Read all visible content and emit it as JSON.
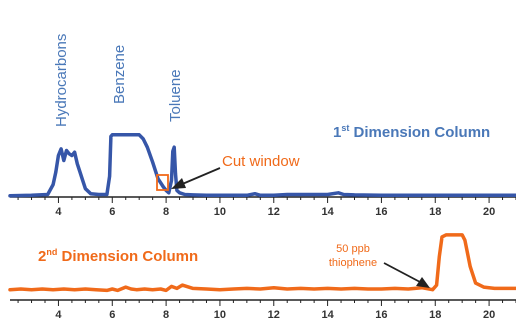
{
  "colors": {
    "blue": "#3656a8",
    "label_blue": "#4a78b8",
    "orange": "#f06a1a",
    "axis": "#222222"
  },
  "chart_data": [
    {
      "type": "line",
      "title_main": "1",
      "title_sup": "st",
      "title_rest": " Dimension Column",
      "xlabel": "",
      "ylabel": "",
      "xlim": [
        2.2,
        21
      ],
      "ylim": [
        0,
        100
      ],
      "x_ticks": [
        4,
        6,
        8,
        10,
        12,
        14,
        16,
        18,
        20
      ],
      "x_tick_labels": [
        "4",
        "6",
        "8",
        "10",
        "12",
        "14",
        "16",
        "18",
        "20"
      ],
      "grid": false,
      "series": [
        {
          "color": "#3656a8",
          "x": [
            2.2,
            3.0,
            3.6,
            3.8,
            3.9,
            4.0,
            4.1,
            4.2,
            4.3,
            4.4,
            4.5,
            4.6,
            4.7,
            4.8,
            4.9,
            5.0,
            5.2,
            5.5,
            5.8,
            5.9,
            5.95,
            6.0,
            6.1,
            6.3,
            6.5,
            6.7,
            7.0,
            7.15,
            7.3,
            7.5,
            7.7,
            7.9,
            8.0,
            8.1,
            8.2,
            8.25,
            8.3,
            8.35,
            8.4,
            8.5,
            8.7,
            9.0,
            9.5,
            10.0,
            10.5,
            11.0,
            11.3,
            11.5,
            12.0,
            12.5,
            13.0,
            13.5,
            14.0,
            14.4,
            14.6,
            15.0,
            16.0,
            17.0,
            18.0,
            19.0,
            20.0,
            21.0
          ],
          "y": [
            1.5,
            2,
            3,
            15,
            30,
            50,
            58,
            44,
            56,
            52,
            50,
            54,
            40,
            30,
            20,
            10,
            4,
            3,
            3,
            25,
            73,
            75,
            75,
            75,
            75,
            75,
            75,
            70,
            60,
            42,
            22,
            12,
            8,
            5,
            20,
            55,
            60,
            28,
            8,
            5,
            3,
            2.5,
            2,
            2,
            2,
            2,
            4,
            2,
            2,
            3,
            3,
            3,
            3,
            5,
            3,
            2.5,
            2,
            2,
            2,
            2,
            2,
            2
          ]
        }
      ],
      "annotations": [
        {
          "text": "Hydrocarbons",
          "x": 4.4,
          "color": "#4a78b8"
        },
        {
          "text": "Benzene",
          "x": 6.5,
          "color": "#4a78b8"
        },
        {
          "text": "Toluene",
          "x": 8.3,
          "color": "#4a78b8"
        },
        {
          "text": "Cut window",
          "x_start": 7.85,
          "x_end": 8.15,
          "color": "#f06a1a"
        }
      ]
    },
    {
      "type": "line",
      "title_main": "2",
      "title_sup": "nd",
      "title_rest": " Dimension Column",
      "xlabel": "",
      "ylabel": "",
      "xlim": [
        2.2,
        21
      ],
      "ylim": [
        0,
        100
      ],
      "x_ticks": [
        4,
        6,
        8,
        10,
        12,
        14,
        16,
        18,
        20
      ],
      "x_tick_labels": [
        "4",
        "6",
        "8",
        "10",
        "12",
        "14",
        "16",
        "18",
        "20"
      ],
      "grid": false,
      "series": [
        {
          "color": "#f06a1a",
          "x": [
            2.2,
            2.6,
            3.0,
            3.4,
            3.8,
            4.2,
            4.6,
            5.0,
            5.4,
            5.8,
            6.0,
            6.2,
            6.5,
            6.7,
            6.9,
            7.2,
            7.5,
            7.8,
            8.0,
            8.2,
            8.4,
            8.6,
            9.0,
            9.5,
            10.0,
            10.5,
            11.0,
            11.5,
            12.0,
            12.5,
            13.0,
            13.5,
            14.0,
            14.5,
            15.0,
            15.5,
            16.0,
            16.5,
            17.0,
            17.5,
            17.9,
            18.05,
            18.15,
            18.25,
            18.4,
            18.7,
            19.0,
            19.1,
            19.3,
            19.5,
            19.8,
            20.2,
            20.6,
            21.0
          ],
          "y": [
            5,
            6,
            5,
            6,
            5,
            6,
            5,
            6,
            5,
            4,
            6,
            4,
            9,
            6,
            5,
            6,
            5,
            6,
            4,
            10,
            7,
            12,
            7,
            6,
            5,
            6,
            7,
            6,
            8,
            6,
            7,
            6,
            7,
            6,
            7,
            6,
            6,
            7,
            6,
            8,
            5,
            12,
            55,
            85,
            88,
            88,
            88,
            80,
            40,
            15,
            9,
            7,
            7,
            7
          ]
        }
      ],
      "annotations": [
        {
          "text": "50 ppb",
          "x": 18.0,
          "color": "#f06a1a"
        },
        {
          "text": "thiophene",
          "x": 18.0,
          "color": "#f06a1a"
        }
      ]
    }
  ]
}
